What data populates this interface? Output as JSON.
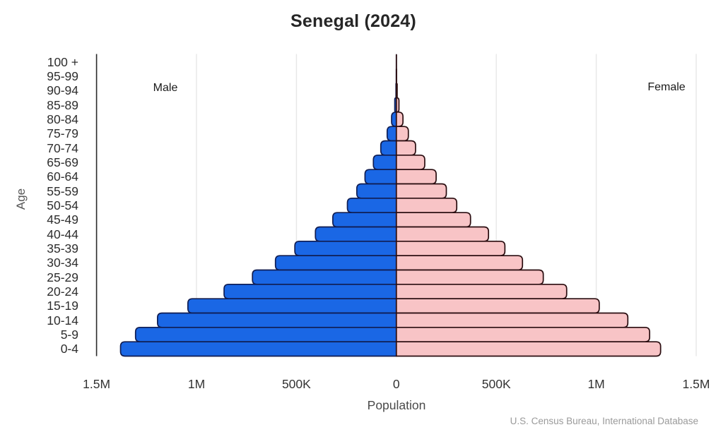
{
  "chart_data": {
    "type": "bar",
    "variant": "population-pyramid",
    "title": "Senegal (2024)",
    "xlabel": "Population",
    "ylabel": "Age",
    "left_label": "Male",
    "right_label": "Female",
    "source": "U.S. Census Bureau, International Database",
    "grid": true,
    "age_groups": [
      "100 +",
      "95-99",
      "90-94",
      "85-89",
      "80-84",
      "75-79",
      "70-74",
      "65-69",
      "60-64",
      "55-59",
      "50-54",
      "45-49",
      "40-44",
      "35-39",
      "30-34",
      "25-29",
      "20-24",
      "15-19",
      "10-14",
      "5-9",
      "0-4"
    ],
    "series": [
      {
        "name": "Male",
        "side": "left",
        "fill": "#1a67e5",
        "edge": "#101d52",
        "values": [
          100,
          500,
          2000,
          8000,
          24000,
          46000,
          78000,
          115000,
          157000,
          198000,
          245000,
          318000,
          405000,
          508000,
          605000,
          720000,
          862000,
          1043000,
          1195000,
          1305000,
          1380000
        ]
      },
      {
        "name": "Female",
        "side": "right",
        "fill": "#f8c4c6",
        "edge": "#2a0d10",
        "values": [
          200,
          1000,
          4000,
          13000,
          33000,
          60000,
          96000,
          142000,
          199000,
          250000,
          302000,
          371000,
          461000,
          543000,
          631000,
          735000,
          852000,
          1015000,
          1158000,
          1267000,
          1322000
        ]
      }
    ],
    "x_ticks": [
      {
        "label": "1.5M",
        "value": -1500000
      },
      {
        "label": "1M",
        "value": -1000000
      },
      {
        "label": "500K",
        "value": -500000
      },
      {
        "label": "0",
        "value": 0
      },
      {
        "label": "500K",
        "value": 500000
      },
      {
        "label": "1M",
        "value": 1000000
      },
      {
        "label": "1.5M",
        "value": 1500000
      }
    ],
    "xlim": [
      -1500000,
      1500000
    ],
    "colors": {
      "male_fill": "#1a67e5",
      "male_edge": "#101d52",
      "female_fill": "#f8c4c6",
      "female_edge": "#2a0d10",
      "gridline": "#e7e7e7",
      "axis_line": "#2b2b2b",
      "title_text": "#262626",
      "source_text": "#9a9a9a"
    }
  }
}
